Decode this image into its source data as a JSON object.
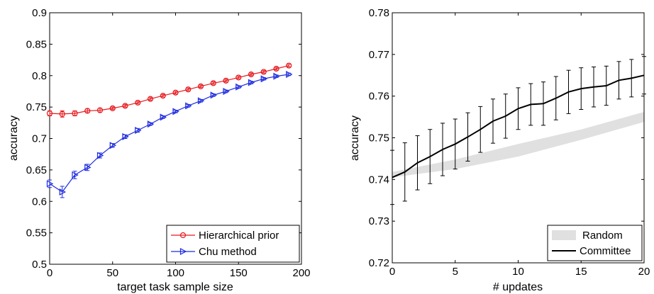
{
  "chart_data": [
    {
      "type": "line",
      "title": "",
      "xlabel": "target task sample size",
      "ylabel": "accuracy",
      "xlim": [
        0,
        200
      ],
      "ylim": [
        0.5,
        0.9
      ],
      "xticks": [
        0,
        50,
        100,
        150,
        200
      ],
      "xtick_labels": [
        "0",
        "50",
        "100",
        "150",
        "200"
      ],
      "yticks": [
        0.5,
        0.55,
        0.6,
        0.65,
        0.7,
        0.75,
        0.8,
        0.85,
        0.9
      ],
      "ytick_labels": [
        "0.5",
        "0.55",
        "0.6",
        "0.65",
        "0.7",
        "0.75",
        "0.8",
        "0.85",
        "0.9"
      ],
      "grid": false,
      "legend_position": "bottom-right",
      "x": [
        0,
        10,
        20,
        30,
        40,
        50,
        60,
        70,
        80,
        90,
        100,
        110,
        120,
        130,
        140,
        150,
        160,
        170,
        180,
        190
      ],
      "series": [
        {
          "name": "Hierarchical prior",
          "color": "#e8191e",
          "marker": "circle",
          "values": [
            0.74,
            0.739,
            0.74,
            0.744,
            0.745,
            0.748,
            0.752,
            0.757,
            0.763,
            0.768,
            0.773,
            0.778,
            0.783,
            0.788,
            0.792,
            0.797,
            0.802,
            0.806,
            0.811,
            0.816
          ],
          "errors": [
            0.004,
            0.005,
            0.004,
            0.003,
            0.003,
            0.002,
            0.002,
            0.002,
            0.002,
            0.002,
            0.002,
            0.002,
            0.002,
            0.002,
            0.002,
            0.002,
            0.002,
            0.002,
            0.002,
            0.002
          ]
        },
        {
          "name": "Chu method",
          "color": "#1f2de0",
          "marker": "triangle-right",
          "values": [
            0.628,
            0.615,
            0.642,
            0.654,
            0.673,
            0.689,
            0.703,
            0.713,
            0.723,
            0.734,
            0.743,
            0.752,
            0.76,
            0.769,
            0.775,
            0.782,
            0.789,
            0.795,
            0.799,
            0.802
          ],
          "errors": [
            0.006,
            0.009,
            0.006,
            0.005,
            0.004,
            0.003,
            0.003,
            0.003,
            0.002,
            0.002,
            0.002,
            0.002,
            0.002,
            0.002,
            0.002,
            0.002,
            0.002,
            0.002,
            0.002,
            0.002
          ]
        }
      ]
    },
    {
      "type": "line",
      "title": "",
      "xlabel": "# updates",
      "ylabel": "accuracy",
      "xlim": [
        0,
        20
      ],
      "ylim": [
        0.72,
        0.78
      ],
      "xticks": [
        0,
        5,
        10,
        15,
        20
      ],
      "xtick_labels": [
        "0",
        "5",
        "10",
        "15",
        "20"
      ],
      "yticks": [
        0.72,
        0.73,
        0.74,
        0.75,
        0.76,
        0.77,
        0.78
      ],
      "ytick_labels": [
        "0.72",
        "0.73",
        "0.74",
        "0.75",
        "0.76",
        "0.77",
        "0.78"
      ],
      "grid": false,
      "legend_position": "bottom-right",
      "band": {
        "name": "Random",
        "color": "#e0e0e0",
        "x": [
          0,
          5,
          10,
          15,
          20
        ],
        "lower": [
          0.7405,
          0.7425,
          0.7455,
          0.7495,
          0.7538
        ],
        "upper": [
          0.7418,
          0.7448,
          0.7485,
          0.752,
          0.7562
        ]
      },
      "series": [
        {
          "name": "Committee",
          "color": "#000000",
          "x": [
            0,
            1,
            2,
            3,
            4,
            5,
            6,
            7,
            8,
            9,
            10,
            11,
            12,
            13,
            14,
            15,
            16,
            17,
            18,
            19,
            20
          ],
          "values": [
            0.7405,
            0.7418,
            0.744,
            0.7455,
            0.7472,
            0.7485,
            0.7502,
            0.752,
            0.754,
            0.7552,
            0.757,
            0.758,
            0.7582,
            0.7595,
            0.761,
            0.7618,
            0.7622,
            0.7625,
            0.7638,
            0.7643,
            0.765
          ],
          "errors": [
            0.0065,
            0.007,
            0.0065,
            0.0065,
            0.0063,
            0.006,
            0.0058,
            0.0055,
            0.0053,
            0.0053,
            0.005,
            0.005,
            0.0052,
            0.0052,
            0.0052,
            0.005,
            0.0048,
            0.0047,
            0.0045,
            0.0045,
            0.0045
          ]
        }
      ]
    }
  ]
}
